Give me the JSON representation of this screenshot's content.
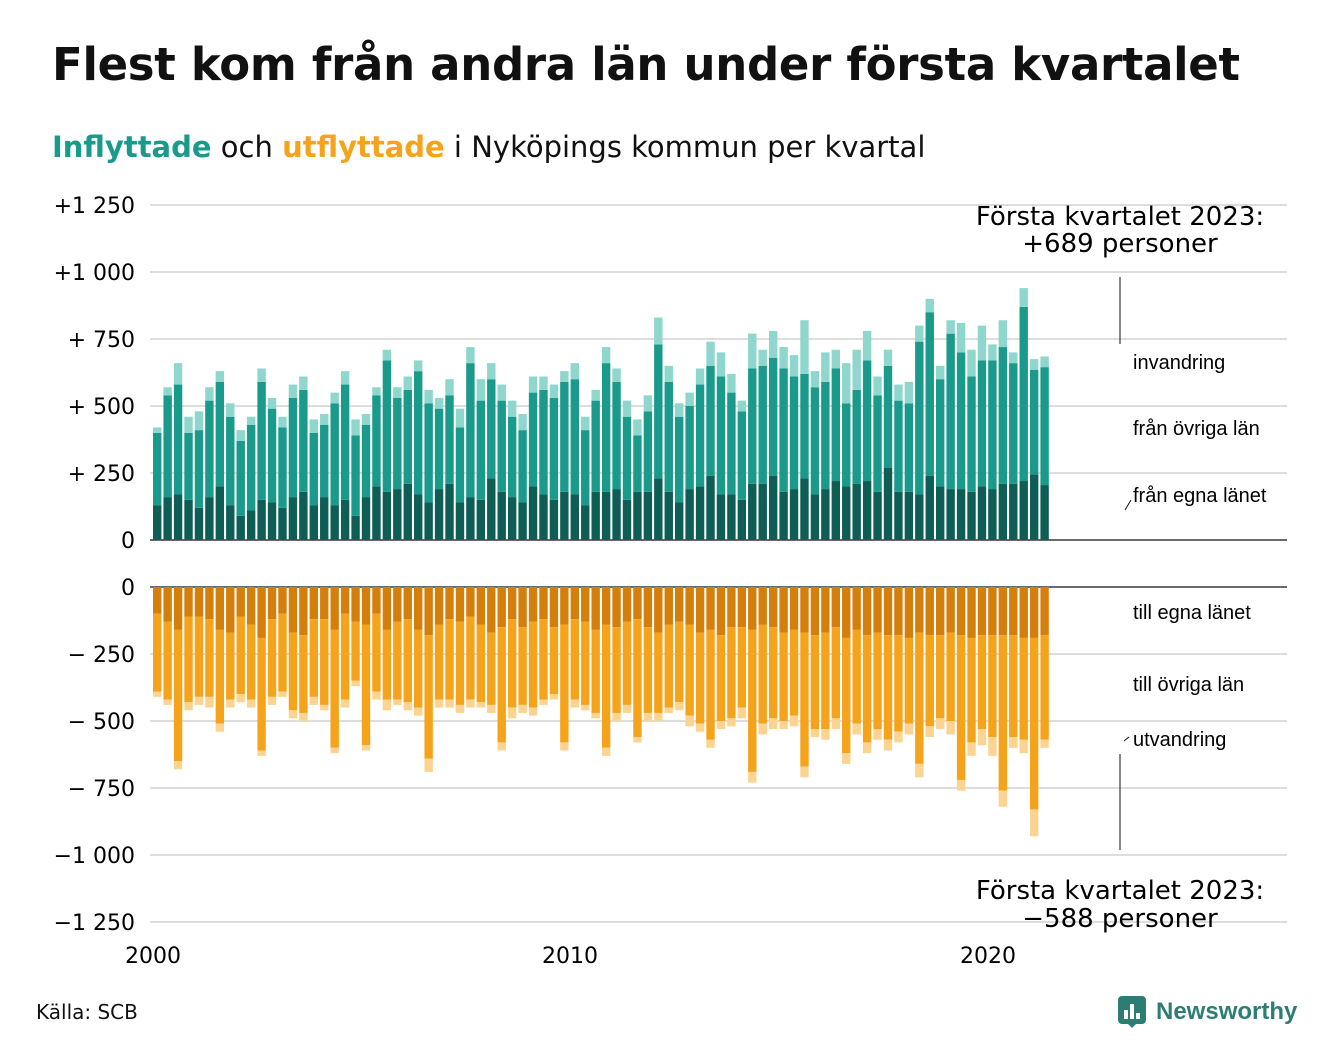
{
  "title": "Flest kom från andra län under första kvartalet",
  "subtitle": {
    "in_word": "Inflyttade",
    "and": " och ",
    "out_word": "utflyttade",
    "rest": " i Nyköpings kommun per kvartal"
  },
  "colors": {
    "in_own": "#0e5e56",
    "in_other": "#1a9a8a",
    "in_immig": "#8fd6cc",
    "out_own": "#d47f0c",
    "out_other": "#f6a31c",
    "out_emig": "#fbd491",
    "grid": "#dddddd",
    "axis": "#111111"
  },
  "chart_data": {
    "type": "bar",
    "stacked": true,
    "x_start": "2000 Q1",
    "x_ticks": [
      "2000",
      "2010",
      "2020"
    ],
    "y_ticks_in": [
      "+1 250",
      "+1 000",
      "+  750",
      "+  500",
      "+  250",
      "0"
    ],
    "y_ticks_out": [
      "0",
      "−  250",
      "−  500",
      "−  750",
      "−1 000",
      "−1 250"
    ],
    "ylim_in": [
      0,
      1250
    ],
    "ylim_out": [
      -1250,
      0
    ],
    "series_in": [
      {
        "name": "från egna länet",
        "values": [
          130,
          160,
          170,
          150,
          120,
          160,
          200,
          130,
          90,
          110,
          150,
          140,
          120,
          160,
          180,
          130,
          160,
          130,
          150,
          90,
          160,
          200,
          180,
          190,
          210,
          170,
          140,
          190,
          210,
          140,
          160,
          150,
          230,
          180,
          160,
          140,
          200,
          170,
          150,
          180,
          170,
          130,
          180,
          180,
          190,
          150,
          180,
          180,
          230,
          180,
          140,
          190,
          200,
          240,
          170,
          170,
          150,
          210,
          210,
          240,
          180,
          190,
          230,
          170,
          190,
          220,
          200,
          210,
          220,
          180,
          270,
          180,
          180,
          170,
          240,
          200,
          190,
          190,
          180,
          200,
          190,
          210,
          210,
          220,
          245,
          205
        ]
      },
      {
        "name": "från övriga län",
        "values": [
          270,
          380,
          410,
          250,
          290,
          360,
          390,
          330,
          280,
          320,
          440,
          350,
          300,
          370,
          380,
          270,
          270,
          380,
          430,
          300,
          270,
          340,
          490,
          340,
          350,
          460,
          370,
          300,
          330,
          280,
          500,
          370,
          370,
          340,
          300,
          270,
          350,
          390,
          380,
          410,
          430,
          280,
          340,
          480,
          400,
          310,
          210,
          300,
          500,
          410,
          320,
          310,
          380,
          410,
          440,
          380,
          330,
          430,
          440,
          440,
          460,
          420,
          390,
          400,
          400,
          420,
          310,
          350,
          450,
          360,
          380,
          340,
          330,
          570,
          610,
          400,
          580,
          510,
          430,
          470,
          480,
          510,
          450,
          650,
          390,
          440
        ]
      },
      {
        "name": "invandring",
        "values": [
          20,
          30,
          80,
          60,
          70,
          50,
          40,
          50,
          40,
          30,
          50,
          40,
          40,
          50,
          50,
          50,
          40,
          40,
          50,
          60,
          40,
          30,
          40,
          40,
          50,
          40,
          50,
          40,
          60,
          70,
          60,
          80,
          60,
          60,
          60,
          60,
          60,
          50,
          50,
          40,
          60,
          50,
          40,
          60,
          50,
          60,
          60,
          60,
          100,
          60,
          50,
          50,
          60,
          90,
          90,
          70,
          40,
          130,
          60,
          100,
          80,
          80,
          200,
          60,
          110,
          70,
          150,
          150,
          110,
          70,
          60,
          60,
          80,
          60,
          50,
          50,
          50,
          110,
          100,
          130,
          60,
          100,
          40,
          70,
          40,
          40
        ]
      }
    ],
    "series_out": [
      {
        "name": "till egna länet",
        "values": [
          -100,
          -130,
          -160,
          -110,
          -110,
          -120,
          -160,
          -170,
          -110,
          -140,
          -190,
          -120,
          -100,
          -170,
          -180,
          -120,
          -120,
          -160,
          -100,
          -130,
          -140,
          -100,
          -160,
          -130,
          -120,
          -160,
          -180,
          -140,
          -120,
          -130,
          -110,
          -140,
          -170,
          -150,
          -120,
          -150,
          -130,
          -120,
          -150,
          -140,
          -120,
          -130,
          -160,
          -140,
          -150,
          -130,
          -120,
          -150,
          -170,
          -140,
          -130,
          -140,
          -170,
          -160,
          -180,
          -150,
          -150,
          -160,
          -140,
          -150,
          -170,
          -160,
          -170,
          -180,
          -170,
          -150,
          -190,
          -160,
          -180,
          -170,
          -180,
          -180,
          -190,
          -170,
          -180,
          -180,
          -170,
          -180,
          -190,
          -180,
          -180,
          -180,
          -180,
          -190,
          -190,
          -180
        ]
      },
      {
        "name": "till övriga län",
        "values": [
          -290,
          -290,
          -490,
          -320,
          -300,
          -290,
          -350,
          -250,
          -290,
          -280,
          -420,
          -290,
          -290,
          -290,
          -290,
          -290,
          -320,
          -440,
          -320,
          -220,
          -450,
          -290,
          -260,
          -290,
          -310,
          -290,
          -460,
          -280,
          -300,
          -310,
          -310,
          -290,
          -270,
          -430,
          -330,
          -290,
          -320,
          -300,
          -250,
          -440,
          -300,
          -310,
          -310,
          -460,
          -320,
          -310,
          -440,
          -320,
          -300,
          -310,
          -300,
          -340,
          -340,
          -410,
          -320,
          -340,
          -300,
          -530,
          -370,
          -340,
          -330,
          -320,
          -500,
          -350,
          -360,
          -340,
          -430,
          -350,
          -400,
          -360,
          -390,
          -360,
          -320,
          -490,
          -340,
          -310,
          -330,
          -540,
          -390,
          -350,
          -380,
          -580,
          -380,
          -380,
          -640,
          -390
        ]
      },
      {
        "name": "utvandring",
        "values": [
          -20,
          -20,
          -30,
          -30,
          -30,
          -40,
          -30,
          -30,
          -30,
          -30,
          -20,
          -30,
          -20,
          -30,
          -30,
          -30,
          -20,
          -20,
          -30,
          -20,
          -20,
          -30,
          -40,
          -20,
          -30,
          -30,
          -50,
          -30,
          -30,
          -30,
          -30,
          -20,
          -30,
          -30,
          -40,
          -30,
          -30,
          -20,
          -20,
          -30,
          -30,
          -20,
          -20,
          -30,
          -30,
          -30,
          -20,
          -30,
          -30,
          -20,
          -30,
          -40,
          -30,
          -30,
          -30,
          -30,
          -40,
          -40,
          -40,
          -40,
          -30,
          -40,
          -40,
          -30,
          -40,
          -40,
          -40,
          -40,
          -40,
          -40,
          -40,
          -40,
          -40,
          -50,
          -40,
          -40,
          -50,
          -40,
          -50,
          -60,
          -70,
          -60,
          -40,
          -50,
          -100,
          -30
        ]
      }
    ],
    "annotation_in": {
      "line1": "Första kvartalet 2023:",
      "line2": "+689 personer"
    },
    "annotation_out": {
      "line1": "Första kvartalet 2023:",
      "line2": "−588 personer"
    },
    "labels_in": [
      "invandring",
      "från övriga län",
      "från egna länet"
    ],
    "labels_out": [
      "till egna länet",
      "till övriga län",
      "utvandring"
    ],
    "grid": true
  },
  "source": "Källa: SCB",
  "logo": {
    "label": "Newsworthy",
    "icon": "bar-chart-icon"
  }
}
